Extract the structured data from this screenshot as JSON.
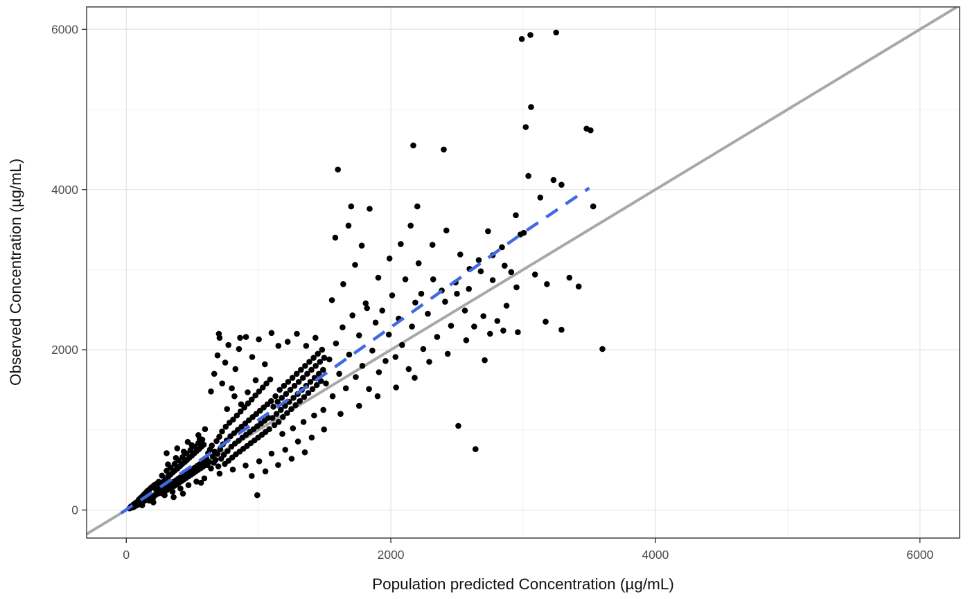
{
  "theme": {
    "background": "#ffffff",
    "panel_border": "#333333",
    "grid_major": "#e4e4e4",
    "grid_minor": "#f2f2f2",
    "tick_color": "#333333",
    "tick_label_color": "#4d4d4d",
    "axis_title_color": "#111111"
  },
  "chart_data": {
    "type": "scatter",
    "title": "",
    "xlabel": "Population predicted Concentration (µg/mL)",
    "ylabel": "Observed Concentration (µg/mL)",
    "x_ticks": [
      0,
      2000,
      4000,
      6000
    ],
    "y_ticks": [
      0,
      2000,
      4000,
      6000
    ],
    "x_tick_labels": [
      "0",
      "2000",
      "4000",
      "6000"
    ],
    "y_tick_labels": [
      "0",
      "2000",
      "4000",
      "6000"
    ],
    "x_minor_ticks": [
      1000,
      3000,
      5000
    ],
    "y_minor_ticks": [
      1000,
      3000,
      5000
    ],
    "x_domain": [
      -300,
      6300
    ],
    "y_domain": [
      -350,
      6280
    ],
    "grid": true,
    "legend": "none",
    "point_color": "#000000",
    "point_radius": 4.3,
    "identity_line": {
      "label": "identity line y = x",
      "color": "#a8a8a8",
      "width": 4,
      "from": [
        -400,
        -400
      ],
      "to": [
        6400,
        6400
      ]
    },
    "smooth_line": {
      "label": "smooth trend (dashed)",
      "color": "#4169E1",
      "width": 4.5,
      "dash": [
        20,
        14
      ],
      "points": [
        [
          -40,
          -40
        ],
        [
          500,
          555
        ],
        [
          1000,
          1125
        ],
        [
          1500,
          1695
        ],
        [
          2000,
          2280
        ],
        [
          2500,
          2870
        ],
        [
          3000,
          3460
        ],
        [
          3500,
          4020
        ]
      ]
    },
    "points": [
      [
        25,
        20
      ],
      [
        35,
        45
      ],
      [
        45,
        30
      ],
      [
        55,
        70
      ],
      [
        60,
        42
      ],
      [
        70,
        88
      ],
      [
        75,
        55
      ],
      [
        85,
        105
      ],
      [
        90,
        68
      ],
      [
        95,
        130
      ],
      [
        100,
        80
      ],
      [
        105,
        145
      ],
      [
        110,
        92
      ],
      [
        115,
        160
      ],
      [
        120,
        100
      ],
      [
        125,
        175
      ],
      [
        130,
        112
      ],
      [
        135,
        195
      ],
      [
        140,
        118
      ],
      [
        145,
        210
      ],
      [
        150,
        128
      ],
      [
        155,
        230
      ],
      [
        160,
        135
      ],
      [
        165,
        245
      ],
      [
        170,
        148
      ],
      [
        175,
        118
      ],
      [
        180,
        265
      ],
      [
        185,
        158
      ],
      [
        190,
        282
      ],
      [
        195,
        168
      ],
      [
        200,
        140
      ],
      [
        205,
        300
      ],
      [
        210,
        178
      ],
      [
        215,
        315
      ],
      [
        220,
        188
      ],
      [
        225,
        255
      ],
      [
        230,
        200
      ],
      [
        235,
        335
      ],
      [
        240,
        205
      ],
      [
        245,
        352
      ],
      [
        250,
        215
      ],
      [
        255,
        285
      ],
      [
        205,
        95
      ],
      [
        160,
        220
      ],
      [
        120,
        60
      ],
      [
        262,
        238
      ],
      [
        268,
        330
      ],
      [
        274,
        205
      ],
      [
        280,
        352
      ],
      [
        286,
        262
      ],
      [
        292,
        232
      ],
      [
        298,
        385
      ],
      [
        304,
        292
      ],
      [
        310,
        252
      ],
      [
        316,
        420
      ],
      [
        322,
        312
      ],
      [
        328,
        272
      ],
      [
        334,
        442
      ],
      [
        340,
        332
      ],
      [
        346,
        292
      ],
      [
        352,
        470
      ],
      [
        358,
        352
      ],
      [
        364,
        302
      ],
      [
        370,
        498
      ],
      [
        376,
        372
      ],
      [
        382,
        322
      ],
      [
        388,
        520
      ],
      [
        394,
        392
      ],
      [
        400,
        342
      ],
      [
        406,
        548
      ],
      [
        412,
        412
      ],
      [
        418,
        362
      ],
      [
        424,
        575
      ],
      [
        430,
        432
      ],
      [
        436,
        382
      ],
      [
        442,
        600
      ],
      [
        448,
        452
      ],
      [
        454,
        402
      ],
      [
        460,
        628
      ],
      [
        466,
        472
      ],
      [
        472,
        422
      ],
      [
        478,
        655
      ],
      [
        484,
        492
      ],
      [
        490,
        442
      ],
      [
        496,
        680
      ],
      [
        502,
        512
      ],
      [
        508,
        462
      ],
      [
        514,
        708
      ],
      [
        520,
        532
      ],
      [
        526,
        482
      ],
      [
        532,
        735
      ],
      [
        538,
        552
      ],
      [
        544,
        502
      ],
      [
        550,
        762
      ],
      [
        556,
        572
      ],
      [
        562,
        522
      ],
      [
        568,
        790
      ],
      [
        574,
        592
      ],
      [
        580,
        542
      ],
      [
        586,
        815
      ],
      [
        592,
        612
      ],
      [
        598,
        562
      ],
      [
        270,
        430
      ],
      [
        305,
        490
      ],
      [
        335,
        530
      ],
      [
        365,
        575
      ],
      [
        395,
        618
      ],
      [
        425,
        660
      ],
      [
        455,
        705
      ],
      [
        485,
        748
      ],
      [
        515,
        792
      ],
      [
        545,
        835
      ],
      [
        575,
        878
      ],
      [
        290,
        185
      ],
      [
        350,
        228
      ],
      [
        410,
        268
      ],
      [
        470,
        310
      ],
      [
        530,
        355
      ],
      [
        590,
        395
      ],
      [
        315,
        570
      ],
      [
        375,
        650
      ],
      [
        435,
        730
      ],
      [
        495,
        810
      ],
      [
        555,
        890
      ],
      [
        358,
        160
      ],
      [
        428,
        205
      ],
      [
        565,
        340
      ],
      [
        305,
        710
      ],
      [
        385,
        770
      ],
      [
        465,
        850
      ],
      [
        545,
        935
      ],
      [
        595,
        1010
      ],
      [
        605,
        645
      ],
      [
        612,
        560
      ],
      [
        619,
        710
      ],
      [
        626,
        600
      ],
      [
        633,
        755
      ],
      [
        640,
        520
      ],
      [
        647,
        805
      ],
      [
        654,
        668
      ],
      [
        661,
        590
      ],
      [
        668,
        730
      ],
      [
        675,
        625
      ],
      [
        682,
        860
      ],
      [
        689,
        700
      ],
      [
        696,
        545
      ],
      [
        703,
        915
      ],
      [
        710,
        760
      ],
      [
        717,
        640
      ],
      [
        724,
        980
      ],
      [
        731,
        820
      ],
      [
        738,
        690
      ],
      [
        745,
        575
      ],
      [
        752,
        1040
      ],
      [
        759,
        870
      ],
      [
        766,
        735
      ],
      [
        773,
        615
      ],
      [
        780,
        1090
      ],
      [
        787,
        920
      ],
      [
        794,
        790
      ],
      [
        801,
        655
      ],
      [
        808,
        1130
      ],
      [
        815,
        960
      ],
      [
        822,
        830
      ],
      [
        829,
        695
      ],
      [
        836,
        1180
      ],
      [
        843,
        1000
      ],
      [
        850,
        865
      ],
      [
        857,
        730
      ],
      [
        864,
        1230
      ],
      [
        871,
        1040
      ],
      [
        878,
        905
      ],
      [
        885,
        765
      ],
      [
        892,
        1280
      ],
      [
        899,
        1080
      ],
      [
        906,
        940
      ],
      [
        913,
        800
      ],
      [
        920,
        1330
      ],
      [
        927,
        1120
      ],
      [
        934,
        975
      ],
      [
        941,
        835
      ],
      [
        948,
        1380
      ],
      [
        955,
        1160
      ],
      [
        962,
        1010
      ],
      [
        969,
        870
      ],
      [
        976,
        1430
      ],
      [
        983,
        1200
      ],
      [
        990,
        1045
      ],
      [
        997,
        905
      ],
      [
        1004,
        1480
      ],
      [
        1011,
        1240
      ],
      [
        1018,
        1080
      ],
      [
        1025,
        940
      ],
      [
        1032,
        1530
      ],
      [
        1039,
        1280
      ],
      [
        1046,
        1115
      ],
      [
        1053,
        975
      ],
      [
        1060,
        1580
      ],
      [
        1067,
        1320
      ],
      [
        1074,
        1150
      ],
      [
        1081,
        1010
      ],
      [
        1088,
        1630
      ],
      [
        1095,
        1360
      ],
      [
        640,
        1480
      ],
      [
        665,
        1700
      ],
      [
        690,
        1930
      ],
      [
        705,
        2150
      ],
      [
        725,
        1580
      ],
      [
        748,
        1840
      ],
      [
        772,
        2060
      ],
      [
        798,
        1520
      ],
      [
        825,
        1760
      ],
      [
        852,
        2010
      ],
      [
        905,
        2160
      ],
      [
        952,
        1910
      ],
      [
        1002,
        2130
      ],
      [
        1048,
        1820
      ],
      [
        1098,
        2210
      ],
      [
        978,
        1620
      ],
      [
        918,
        1470
      ],
      [
        868,
        1320
      ],
      [
        818,
        1420
      ],
      [
        762,
        1260
      ],
      [
        700,
        2200
      ],
      [
        860,
        2150
      ],
      [
        705,
        455
      ],
      [
        805,
        505
      ],
      [
        902,
        555
      ],
      [
        1005,
        608
      ],
      [
        1098,
        705
      ],
      [
        1202,
        752
      ],
      [
        1298,
        855
      ],
      [
        1402,
        905
      ],
      [
        1495,
        1005
      ],
      [
        948,
        425
      ],
      [
        1052,
        482
      ],
      [
        1148,
        562
      ],
      [
        990,
        185
      ],
      [
        1250,
        640
      ],
      [
        1350,
        720
      ],
      [
        1105,
        1150
      ],
      [
        1112,
        1290
      ],
      [
        1120,
        1060
      ],
      [
        1128,
        1420
      ],
      [
        1136,
        1200
      ],
      [
        1144,
        1350
      ],
      [
        1152,
        1100
      ],
      [
        1160,
        1500
      ],
      [
        1168,
        1250
      ],
      [
        1176,
        1400
      ],
      [
        1184,
        1160
      ],
      [
        1192,
        1550
      ],
      [
        1200,
        1300
      ],
      [
        1208,
        1450
      ],
      [
        1216,
        1210
      ],
      [
        1224,
        1600
      ],
      [
        1232,
        1350
      ],
      [
        1240,
        1500
      ],
      [
        1248,
        1260
      ],
      [
        1256,
        1650
      ],
      [
        1264,
        1400
      ],
      [
        1272,
        1550
      ],
      [
        1280,
        1310
      ],
      [
        1288,
        1700
      ],
      [
        1296,
        1450
      ],
      [
        1304,
        1600
      ],
      [
        1312,
        1360
      ],
      [
        1320,
        1750
      ],
      [
        1328,
        1500
      ],
      [
        1336,
        1650
      ],
      [
        1344,
        1410
      ],
      [
        1352,
        1800
      ],
      [
        1360,
        1550
      ],
      [
        1368,
        1700
      ],
      [
        1376,
        1460
      ],
      [
        1384,
        1850
      ],
      [
        1392,
        1600
      ],
      [
        1400,
        1750
      ],
      [
        1408,
        1510
      ],
      [
        1416,
        1900
      ],
      [
        1424,
        1650
      ],
      [
        1432,
        1800
      ],
      [
        1440,
        1560
      ],
      [
        1448,
        1950
      ],
      [
        1456,
        1700
      ],
      [
        1464,
        1850
      ],
      [
        1472,
        1610
      ],
      [
        1480,
        2000
      ],
      [
        1488,
        1750
      ],
      [
        1496,
        1900
      ],
      [
        1150,
        2050
      ],
      [
        1220,
        2100
      ],
      [
        1290,
        2200
      ],
      [
        1360,
        2050
      ],
      [
        1430,
        2150
      ],
      [
        1180,
        950
      ],
      [
        1260,
        1020
      ],
      [
        1340,
        1100
      ],
      [
        1420,
        1180
      ],
      [
        1490,
        1250
      ],
      [
        1510,
        1580
      ],
      [
        1535,
        1880
      ],
      [
        1560,
        1420
      ],
      [
        1585,
        2080
      ],
      [
        1610,
        1700
      ],
      [
        1635,
        2280
      ],
      [
        1660,
        1520
      ],
      [
        1685,
        1940
      ],
      [
        1710,
        2430
      ],
      [
        1735,
        1660
      ],
      [
        1760,
        2180
      ],
      [
        1785,
        1800
      ],
      [
        1810,
        2580
      ],
      [
        1835,
        1510
      ],
      [
        1860,
        1990
      ],
      [
        1885,
        2340
      ],
      [
        1910,
        1720
      ],
      [
        1935,
        2490
      ],
      [
        1960,
        1860
      ],
      [
        1985,
        2190
      ],
      [
        2010,
        2680
      ],
      [
        2035,
        1910
      ],
      [
        2060,
        2390
      ],
      [
        2085,
        2060
      ],
      [
        2110,
        2880
      ],
      [
        2135,
        1760
      ],
      [
        2160,
        2290
      ],
      [
        2185,
        2590
      ],
      [
        1600,
        4250
      ],
      [
        2170,
        4550
      ],
      [
        2400,
        4500
      ],
      [
        1700,
        3790
      ],
      [
        1840,
        3760
      ],
      [
        2200,
        3790
      ],
      [
        1555,
        2620
      ],
      [
        1640,
        2820
      ],
      [
        1730,
        3060
      ],
      [
        1820,
        2520
      ],
      [
        1905,
        2900
      ],
      [
        1990,
        3140
      ],
      [
        2075,
        3320
      ],
      [
        2150,
        3550
      ],
      [
        1620,
        1200
      ],
      [
        1760,
        1300
      ],
      [
        1900,
        1420
      ],
      [
        2040,
        1530
      ],
      [
        2180,
        1650
      ],
      [
        1580,
        3400
      ],
      [
        1680,
        3550
      ],
      [
        1780,
        3300
      ],
      [
        2210,
        3080
      ],
      [
        2245,
        2010
      ],
      [
        2280,
        2450
      ],
      [
        2315,
        3310
      ],
      [
        2350,
        2160
      ],
      [
        2385,
        2740
      ],
      [
        2420,
        3490
      ],
      [
        2455,
        2300
      ],
      [
        2490,
        2840
      ],
      [
        2525,
        3190
      ],
      [
        2560,
        2490
      ],
      [
        2595,
        3010
      ],
      [
        2630,
        2290
      ],
      [
        2665,
        3120
      ],
      [
        2700,
        2420
      ],
      [
        2735,
        3480
      ],
      [
        2770,
        2870
      ],
      [
        2805,
        2360
      ],
      [
        2840,
        3280
      ],
      [
        2875,
        2550
      ],
      [
        2910,
        2970
      ],
      [
        2945,
        3680
      ],
      [
        2980,
        3440
      ],
      [
        2230,
        2700
      ],
      [
        2320,
        2880
      ],
      [
        2410,
        2600
      ],
      [
        2500,
        2700
      ],
      [
        2590,
        2760
      ],
      [
        2680,
        2980
      ],
      [
        2770,
        3180
      ],
      [
        2860,
        3050
      ],
      [
        2950,
        2780
      ],
      [
        2290,
        1850
      ],
      [
        2430,
        1950
      ],
      [
        2570,
        2120
      ],
      [
        2710,
        1870
      ],
      [
        2850,
        2240
      ],
      [
        2640,
        760
      ],
      [
        2510,
        1050
      ],
      [
        2750,
        2200
      ],
      [
        3005,
        3460
      ],
      [
        3040,
        4170
      ],
      [
        3090,
        2940
      ],
      [
        3130,
        3900
      ],
      [
        3180,
        2820
      ],
      [
        3230,
        4120
      ],
      [
        3290,
        4060
      ],
      [
        3350,
        2900
      ],
      [
        3420,
        2790
      ],
      [
        3480,
        4760
      ],
      [
        3530,
        3790
      ],
      [
        3600,
        2010
      ],
      [
        2990,
        5880
      ],
      [
        3055,
        5930
      ],
      [
        3250,
        5960
      ],
      [
        3060,
        5030
      ],
      [
        3020,
        4780
      ],
      [
        3170,
        2350
      ],
      [
        3290,
        2250
      ],
      [
        2960,
        2220
      ],
      [
        3510,
        4740
      ]
    ]
  }
}
